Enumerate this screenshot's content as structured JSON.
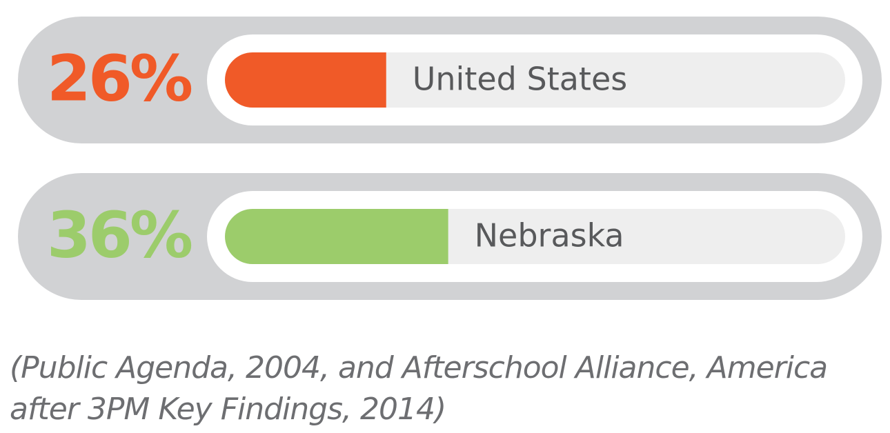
{
  "chart_data": {
    "type": "bar",
    "categories": [
      "United States",
      "Nebraska"
    ],
    "values": [
      26,
      36
    ],
    "value_labels": [
      "26%",
      "36%"
    ],
    "colors": [
      "#f05a28",
      "#9ccc6b"
    ],
    "xlim": [
      0,
      100
    ],
    "note": "(Public Agenda, 2004, and Afterschool Alliance, America after 3PM Key Findings, 2014)"
  }
}
